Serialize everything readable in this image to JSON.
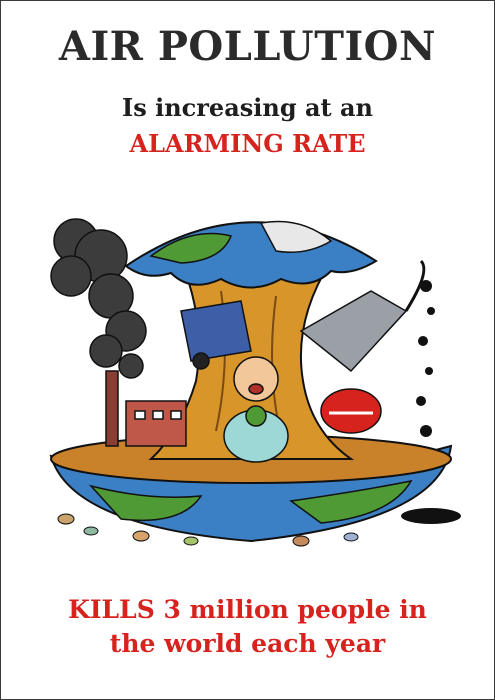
{
  "poster": {
    "title": "AIR POLLUTION",
    "subtitle_line1": "Is increasing at an",
    "subtitle_line2": "ALARMING RATE",
    "footer_line1": "KILLS 3 million people in",
    "footer_line2": "the world each year"
  },
  "colors": {
    "title": "#2b2b2b",
    "accent_red": "#d7231e",
    "earth_green": "#4f9a35",
    "earth_blue": "#3b7fc4",
    "core_orange": "#d8962a",
    "smoke": "#3c3c3c"
  },
  "illustration": {
    "icon": "eaten-earth-apple-core-illustration"
  }
}
